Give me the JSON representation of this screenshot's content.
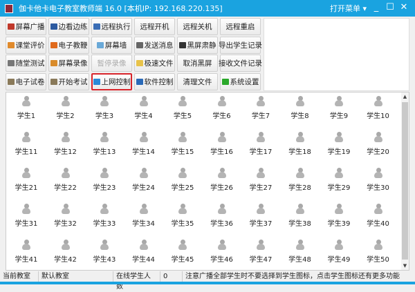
{
  "window": {
    "title": "伽卡他卡电子教室教师端 16.0 [本机IP: 192.168.220.135]",
    "menu": "打开菜单 ▾",
    "minimize": "_",
    "maximize": "☐",
    "close": "✕"
  },
  "toolbar": [
    [
      {
        "label": "屏幕广播",
        "icon": "monitor-red-icon",
        "color": "#c0392b"
      },
      {
        "label": "边看边练",
        "icon": "monitor-icon",
        "color": "#2c5aa0"
      },
      {
        "label": "远程执行",
        "icon": "window-icon",
        "color": "#3a6db5"
      },
      {
        "label": "远程开机"
      },
      {
        "label": "远程关机"
      },
      {
        "label": "远程重启"
      }
    ],
    [
      {
        "label": "课堂评价",
        "icon": "pencil-chart-icon",
        "color": "#e08a2c"
      },
      {
        "label": "电子教鞭",
        "icon": "pen-icon",
        "color": "#e06a1c"
      },
      {
        "label": "屏幕墙",
        "icon": "grid-icon",
        "color": "#6aa9d8"
      },
      {
        "label": "发送消息",
        "icon": "message-icon",
        "color": "#666666"
      },
      {
        "label": "黑屏肃静",
        "icon": "black-screen-icon",
        "color": "#333333"
      },
      {
        "label": "导出学生记录"
      }
    ],
    [
      {
        "label": "随堂测试",
        "icon": "test-icon",
        "color": "#777777"
      },
      {
        "label": "屏幕录像",
        "icon": "record-icon",
        "color": "#d98b2b"
      },
      {
        "label": "暂停录像",
        "disabled": true
      },
      {
        "label": "极速文件",
        "icon": "folder-icon",
        "color": "#e8c34a"
      },
      {
        "label": "取消黑屏"
      },
      {
        "label": "接收文件记录"
      }
    ],
    [
      {
        "label": "电子试卷",
        "icon": "exam-paper-icon",
        "color": "#8a7a5a"
      },
      {
        "label": "开始考试",
        "icon": "start-exam-icon",
        "color": "#8a7a5a"
      },
      {
        "label": "上网控制",
        "icon": "internet-explorer-icon",
        "color": "#2a8ad8",
        "highlighted": true
      },
      {
        "label": "软件控制",
        "icon": "software-icon",
        "color": "#2a6ab8"
      },
      {
        "label": "清理文件"
      },
      {
        "label": "系统设置",
        "icon": "checkmark-icon",
        "color": "#2aa82a"
      }
    ]
  ],
  "students": [
    "学生1",
    "学生2",
    "学生3",
    "学生4",
    "学生5",
    "学生6",
    "学生7",
    "学生8",
    "学生9",
    "学生10",
    "学生11",
    "学生12",
    "学生13",
    "学生14",
    "学生15",
    "学生16",
    "学生17",
    "学生18",
    "学生19",
    "学生20",
    "学生21",
    "学生22",
    "学生23",
    "学生24",
    "学生25",
    "学生26",
    "学生27",
    "学生28",
    "学生29",
    "学生30",
    "学生31",
    "学生32",
    "学生33",
    "学生34",
    "学生35",
    "学生36",
    "学生37",
    "学生38",
    "学生39",
    "学生40",
    "学生41",
    "学生42",
    "学生43",
    "学生44",
    "学生45",
    "学生46",
    "学生47",
    "学生48",
    "学生49",
    "学生50"
  ],
  "status": {
    "classroom_label": "当前教室",
    "classroom": "默认教室",
    "online_label": "在线学生人数",
    "online_count": "0",
    "hint": "注意广播全部学生时不要选择到学生图标，点击学生图标还有更多功能"
  }
}
